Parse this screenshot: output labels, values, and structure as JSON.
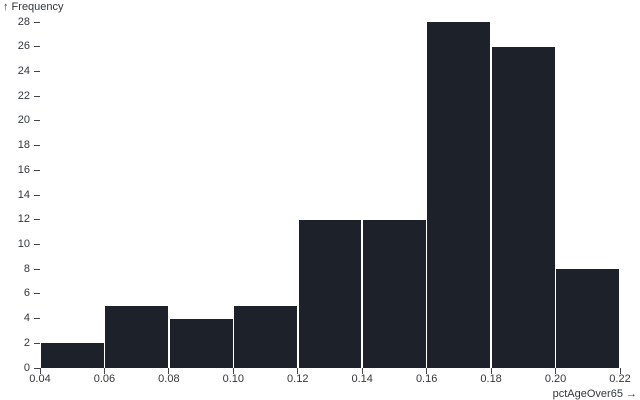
{
  "chart_data": {
    "type": "bar",
    "subtype": "histogram",
    "title": "",
    "ylabel": "↑ Frequency",
    "xlabel": "pctAgeOver65 →",
    "xlim": [
      0.04,
      0.22
    ],
    "ylim": [
      0,
      28
    ],
    "bins": [
      {
        "x0": 0.04,
        "x1": 0.06,
        "frequency": 2
      },
      {
        "x0": 0.06,
        "x1": 0.08,
        "frequency": 5
      },
      {
        "x0": 0.08,
        "x1": 0.1,
        "frequency": 4
      },
      {
        "x0": 0.1,
        "x1": 0.12,
        "frequency": 5
      },
      {
        "x0": 0.12,
        "x1": 0.14,
        "frequency": 12
      },
      {
        "x0": 0.14,
        "x1": 0.16,
        "frequency": 12
      },
      {
        "x0": 0.16,
        "x1": 0.18,
        "frequency": 28
      },
      {
        "x0": 0.18,
        "x1": 0.2,
        "frequency": 26
      },
      {
        "x0": 0.2,
        "x1": 0.22,
        "frequency": 8
      }
    ],
    "x_ticks": [
      "0.04",
      "0.06",
      "0.08",
      "0.10",
      "0.12",
      "0.14",
      "0.16",
      "0.18",
      "0.20",
      "0.22"
    ],
    "y_ticks": [
      0,
      2,
      4,
      6,
      8,
      10,
      12,
      14,
      16,
      18,
      20,
      22,
      24,
      26,
      28
    ],
    "colors": {
      "bar": "#1d212a",
      "axis_text": "#33373d",
      "tick_mark": "#42464c",
      "background": "#ffffff"
    },
    "grid": false,
    "legend": false
  }
}
